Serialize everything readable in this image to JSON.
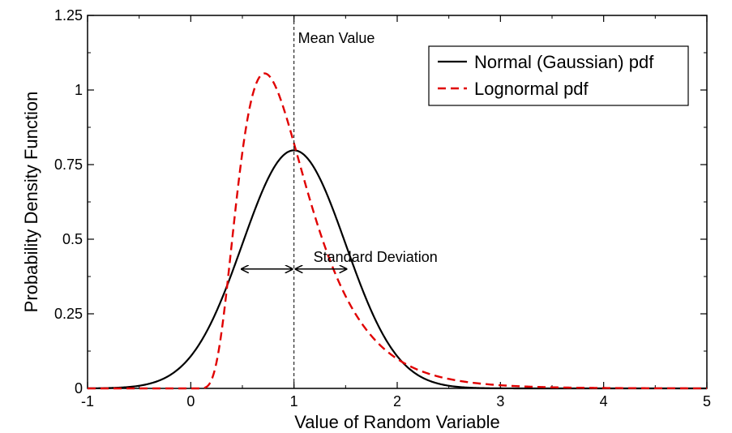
{
  "chart_data": {
    "type": "line",
    "xlabel": "Value of Random Variable",
    "ylabel": "Probability Density Function",
    "xlim": [
      -1,
      5
    ],
    "ylim": [
      0,
      1.25
    ],
    "xticks": [
      "-1",
      "0",
      "1",
      "2",
      "3",
      "4",
      "5"
    ],
    "yticks": [
      "0",
      "0.25",
      "0.5",
      "0.75",
      "1",
      "1.25"
    ],
    "legend_position": "top-right",
    "series": [
      {
        "name": "Normal (Gaussian) pdf",
        "color": "#000000",
        "style": "solid",
        "distribution": "normal",
        "mean": 1,
        "sd": 0.5
      },
      {
        "name": "Lognormal pdf",
        "color": "#e00000",
        "style": "dashed",
        "distribution": "lognormal",
        "mean": 1,
        "sd": 0.5,
        "mode_value": 1.12
      }
    ],
    "annotations": {
      "mean_label": "Mean Value",
      "mean_x": 1,
      "sd_label": "Standard Deviation",
      "sd_arrow_y": 0.4,
      "sd_arrow_from": 0.5,
      "sd_arrow_to": 1.5
    }
  }
}
